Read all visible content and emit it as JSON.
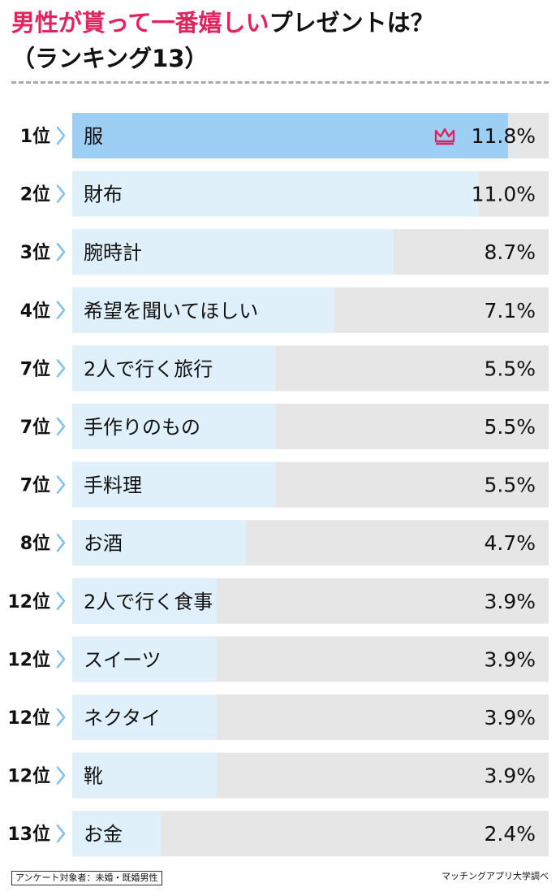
{
  "title_highlight": "男性が貰って一番嬉しい",
  "title_rest": "プレゼントは？",
  "subtitle": "（ランキング13）",
  "footnote_left": "アンケート対象者：未婚・既婚男性",
  "footnote_right": "マッチングアプリ大学調べ",
  "colors": {
    "accent": "#e0245e",
    "top_bar": "#9dcff4",
    "bar": "#dff0fb",
    "track": "#e6e6e6",
    "chevron": "#7fc0ec"
  },
  "chart_data": {
    "type": "bar",
    "orientation": "horizontal",
    "xlim": [
      0,
      12.9
    ],
    "unit": "%",
    "icons": {
      "top_rank": "crown-icon",
      "rank_separator": "chevron-right-icon"
    },
    "items": [
      {
        "rank": "1位",
        "label": "服",
        "value": 11.8,
        "value_label": "11.8%"
      },
      {
        "rank": "2位",
        "label": "財布",
        "value": 11.0,
        "value_label": "11.0%"
      },
      {
        "rank": "3位",
        "label": "腕時計",
        "value": 8.7,
        "value_label": "8.7%"
      },
      {
        "rank": "4位",
        "label": "希望を聞いてほしい",
        "value": 7.1,
        "value_label": "7.1%"
      },
      {
        "rank": "7位",
        "label": "2人で行く旅行",
        "value": 5.5,
        "value_label": "5.5%"
      },
      {
        "rank": "7位",
        "label": "手作りのもの",
        "value": 5.5,
        "value_label": "5.5%"
      },
      {
        "rank": "7位",
        "label": "手料理",
        "value": 5.5,
        "value_label": "5.5%"
      },
      {
        "rank": "8位",
        "label": "お酒",
        "value": 4.7,
        "value_label": "4.7%"
      },
      {
        "rank": "12位",
        "label": "2人で行く食事",
        "value": 3.9,
        "value_label": "3.9%"
      },
      {
        "rank": "12位",
        "label": "スイーツ",
        "value": 3.9,
        "value_label": "3.9%"
      },
      {
        "rank": "12位",
        "label": "ネクタイ",
        "value": 3.9,
        "value_label": "3.9%"
      },
      {
        "rank": "12位",
        "label": "靴",
        "value": 3.9,
        "value_label": "3.9%"
      },
      {
        "rank": "13位",
        "label": "お金",
        "value": 2.4,
        "value_label": "2.4%"
      }
    ]
  }
}
